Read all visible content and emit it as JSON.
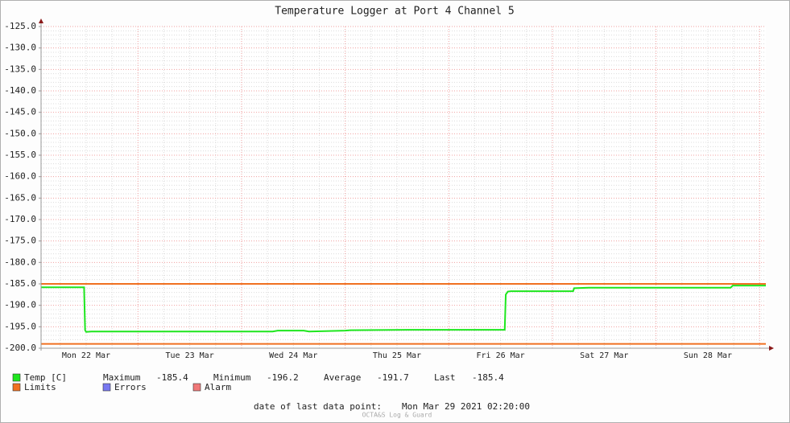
{
  "chart_data": {
    "type": "line",
    "title": "Temperature Logger at Port 4 Channel 5",
    "xlim": [
      22.065,
      29.06
    ],
    "xticks": [
      {
        "value": 22.5,
        "label": "Mon 22 Mar"
      },
      {
        "value": 23.5,
        "label": "Tue 23 Mar"
      },
      {
        "value": 24.5,
        "label": "Wed 24 Mar"
      },
      {
        "value": 25.5,
        "label": "Thu 25 Mar"
      },
      {
        "value": 26.5,
        "label": "Fri 26 Mar"
      },
      {
        "value": 27.5,
        "label": "Sat 27 Mar"
      },
      {
        "value": 28.5,
        "label": "Sun 28 Mar"
      }
    ],
    "ylim": [
      -200,
      -125
    ],
    "yticks": [
      {
        "value": -200,
        "label": "-200.0"
      },
      {
        "value": -195,
        "label": "-195.0"
      },
      {
        "value": -190,
        "label": "-190.0"
      },
      {
        "value": -185,
        "label": "-185.0"
      },
      {
        "value": -180,
        "label": "-180.0"
      },
      {
        "value": -175,
        "label": "-175.0"
      },
      {
        "value": -170,
        "label": "-170.0"
      },
      {
        "value": -165,
        "label": "-165.0"
      },
      {
        "value": -160,
        "label": "-160.0"
      },
      {
        "value": -155,
        "label": "-155.0"
      },
      {
        "value": -150,
        "label": "-150.0"
      },
      {
        "value": -145,
        "label": "-145.0"
      },
      {
        "value": -140,
        "label": "-140.0"
      },
      {
        "value": -135,
        "label": "-135.0"
      },
      {
        "value": -130,
        "label": "-130.0"
      },
      {
        "value": -125,
        "label": "-125.0"
      }
    ],
    "grid": true,
    "x": [
      22.065,
      22.48,
      22.49,
      22.5,
      22.55,
      24.3,
      24.35,
      24.6,
      24.65,
      25.0,
      25.05,
      25.6,
      26.54,
      26.55,
      26.57,
      26.6,
      27.2,
      27.21,
      27.35,
      28.72,
      28.74,
      29.06
    ],
    "series": [
      {
        "name": "Temp [C]",
        "color": "#1ee61e",
        "values": [
          -185.8,
          -185.8,
          -195.8,
          -196.2,
          -196.1,
          -196.1,
          -195.9,
          -195.9,
          -196.1,
          -195.9,
          -195.8,
          -195.7,
          -195.7,
          -187.5,
          -186.8,
          -186.7,
          -186.7,
          -186.0,
          -185.9,
          -185.9,
          -185.4,
          -185.4
        ]
      }
    ],
    "limits": {
      "name": "Limits",
      "color": "#f07020",
      "values": [
        -185,
        -199
      ]
    },
    "legend_extra": [
      {
        "name": "Errors",
        "color": "#7878f0"
      },
      {
        "name": "Alarm",
        "color": "#f07878"
      }
    ],
    "stats": [
      {
        "label": "Maximum",
        "value": -185.4
      },
      {
        "label": "Minimum",
        "value": -196.2
      },
      {
        "label": "Average",
        "value": -191.7
      },
      {
        "label": "Last",
        "value": -185.4
      }
    ],
    "footer_label": "date of last data point:",
    "footer_date": "Mon Mar 29 2021 02:20:00",
    "watermark": "OCTA&S Log & Guard"
  }
}
